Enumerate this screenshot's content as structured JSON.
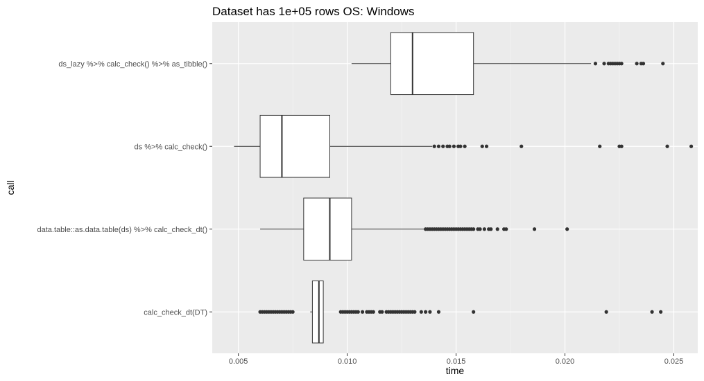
{
  "chart_data": {
    "type": "boxplot",
    "orientation": "horizontal",
    "title": "Dataset has 1e+05 rows OS: Windows",
    "xlabel": "time",
    "ylabel": "call",
    "xlim": [
      0.0038,
      0.0261
    ],
    "x_ticks": [
      0.005,
      0.01,
      0.015,
      0.02,
      0.025
    ],
    "x_tick_labels": [
      "0.005",
      "0.010",
      "0.015",
      "0.020",
      "0.025"
    ],
    "grid": true,
    "background": "#ebebeb",
    "categories": [
      "ds_lazy %>% calc_check() %>% as_tibble()",
      "ds %>% calc_check()",
      "data.table::as.data.table(ds) %>% calc_check_dt()",
      "calc_check_dt(DT)"
    ],
    "boxes": [
      {
        "whisker_low": 0.0102,
        "q1": 0.012,
        "median": 0.013,
        "q3": 0.0158,
        "whisker_high": 0.0212,
        "outliers": [
          0.0214,
          0.0218,
          0.022,
          0.0221,
          0.0222,
          0.0223,
          0.0224,
          0.0225,
          0.0226,
          0.0233,
          0.0235,
          0.0236,
          0.0245
        ]
      },
      {
        "whisker_low": 0.0048,
        "q1": 0.006,
        "median": 0.007,
        "q3": 0.0092,
        "whisker_high": 0.0139,
        "outliers": [
          0.014,
          0.0142,
          0.0144,
          0.0146,
          0.0147,
          0.0149,
          0.0151,
          0.0152,
          0.0154,
          0.0162,
          0.0164,
          0.018,
          0.0216,
          0.0225,
          0.0226,
          0.0247,
          0.0258
        ]
      },
      {
        "whisker_low": 0.006,
        "q1": 0.008,
        "median": 0.0092,
        "q3": 0.0102,
        "whisker_high": 0.0136,
        "outliers": [
          0.0136,
          0.0137,
          0.0138,
          0.0139,
          0.014,
          0.0141,
          0.0142,
          0.0143,
          0.0144,
          0.0145,
          0.0146,
          0.0147,
          0.0148,
          0.0149,
          0.015,
          0.0151,
          0.0152,
          0.0153,
          0.0154,
          0.0155,
          0.0156,
          0.0157,
          0.0158,
          0.016,
          0.0161,
          0.0163,
          0.0165,
          0.0166,
          0.0169,
          0.0172,
          0.0173,
          0.0186,
          0.0201
        ]
      },
      {
        "whisker_low": 0.0083,
        "q1": 0.0084,
        "median": 0.0087,
        "q3": 0.0089,
        "whisker_high": 0.0089,
        "outliers": [
          0.006,
          0.0061,
          0.0062,
          0.0063,
          0.0064,
          0.0065,
          0.0066,
          0.0067,
          0.0068,
          0.0069,
          0.007,
          0.0071,
          0.0072,
          0.0073,
          0.0074,
          0.0075,
          0.0097,
          0.0098,
          0.0099,
          0.01,
          0.0101,
          0.0102,
          0.0103,
          0.0104,
          0.0105,
          0.0107,
          0.0109,
          0.011,
          0.0111,
          0.0112,
          0.0115,
          0.0116,
          0.0118,
          0.0119,
          0.012,
          0.0121,
          0.0122,
          0.0123,
          0.0124,
          0.0125,
          0.0126,
          0.0127,
          0.0128,
          0.0129,
          0.013,
          0.0131,
          0.0134,
          0.0136,
          0.0138,
          0.0142,
          0.0158,
          0.0219,
          0.024,
          0.0244
        ]
      }
    ]
  }
}
